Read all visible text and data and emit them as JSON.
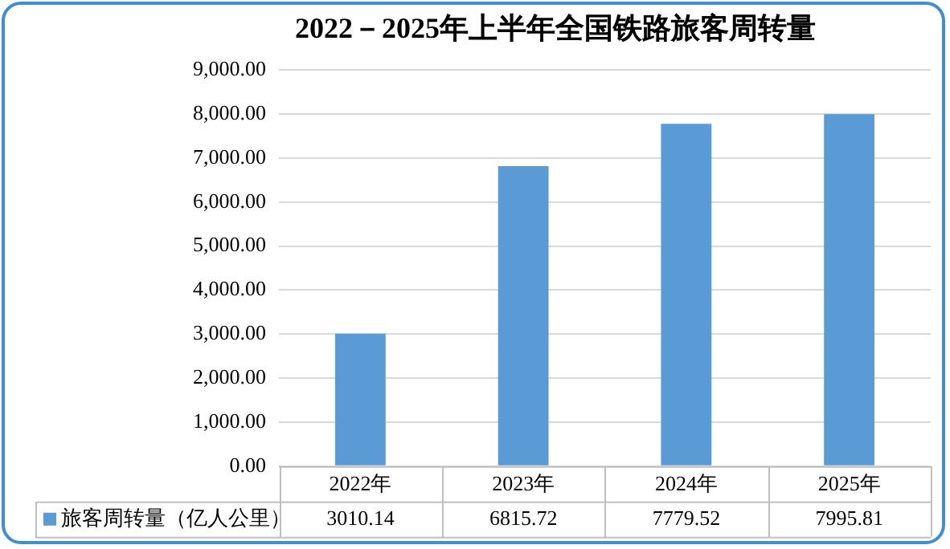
{
  "chart_data": {
    "type": "bar",
    "title": "2022－2025年上半年全国铁路旅客周转量",
    "categories": [
      "2022年",
      "2023年",
      "2024年",
      "2025年"
    ],
    "series": [
      {
        "name": "旅客周转量（亿人公里）",
        "color": "#5b9bd5",
        "values": [
          3010.14,
          6815.72,
          7779.52,
          7995.81
        ]
      }
    ],
    "ylim": [
      0,
      9000
    ],
    "yticks": [
      {
        "value": 0,
        "label": "0.00"
      },
      {
        "value": 1000,
        "label": "1,000.00"
      },
      {
        "value": 2000,
        "label": "2,000.00"
      },
      {
        "value": 3000,
        "label": "3,000.00"
      },
      {
        "value": 4000,
        "label": "4,000.00"
      },
      {
        "value": 5000,
        "label": "5,000.00"
      },
      {
        "value": 6000,
        "label": "6,000.00"
      },
      {
        "value": 7000,
        "label": "7,000.00"
      },
      {
        "value": 8000,
        "label": "8,000.00"
      },
      {
        "value": 9000,
        "label": "9,000.00"
      }
    ],
    "grid": "y",
    "legend": "bottom",
    "data_labels": true
  }
}
